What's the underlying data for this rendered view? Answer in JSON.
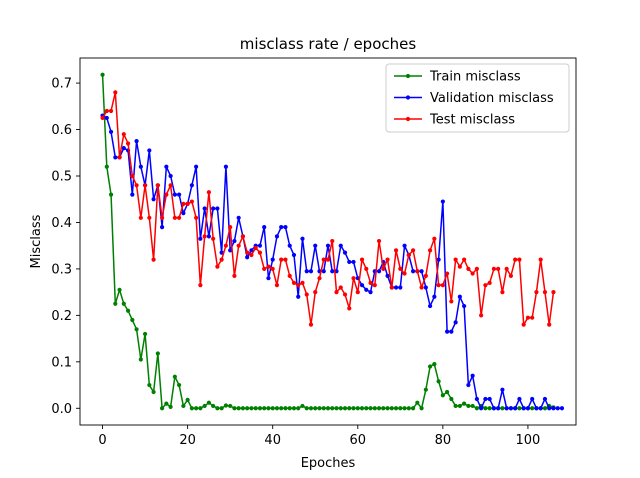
{
  "chart_data": {
    "type": "line",
    "title": "misclass rate / epoches",
    "xlabel": "Epoches",
    "ylabel": "Misclass",
    "xlim": [
      -5.3,
      111.3
    ],
    "ylim": [
      -0.036,
      0.754
    ],
    "xticks": [
      0,
      20,
      40,
      60,
      80,
      100
    ],
    "yticks": [
      0.0,
      0.1,
      0.2,
      0.3,
      0.4,
      0.5,
      0.6,
      0.7
    ],
    "ytick_labels": [
      "0.0",
      "0.1",
      "0.2",
      "0.3",
      "0.4",
      "0.5",
      "0.6",
      "0.7"
    ],
    "grid": false,
    "legend": "top-right",
    "series": [
      {
        "name": "Train misclass",
        "color": "#008000",
        "values": [
          0.718,
          0.52,
          0.46,
          0.225,
          0.255,
          0.225,
          0.21,
          0.19,
          0.17,
          0.105,
          0.16,
          0.05,
          0.035,
          0.118,
          0.0,
          0.01,
          0.003,
          0.068,
          0.05,
          0.005,
          0.018,
          0.0,
          0.0,
          0.0,
          0.005,
          0.012,
          0.005,
          0.0,
          0.0,
          0.006,
          0.005,
          0.0,
          0.0,
          0.0,
          0.0,
          0.0,
          0.0,
          0.0,
          0.0,
          0.0,
          0.0,
          0.0,
          0.0,
          0.0,
          0.0,
          0.0,
          0.0,
          0.005,
          0.0,
          0.0,
          0.0,
          0.0,
          0.0,
          0.0,
          0.0,
          0.0,
          0.0,
          0.0,
          0.0,
          0.0,
          0.0,
          0.0,
          0.0,
          0.0,
          0.0,
          0.0,
          0.0,
          0.0,
          0.0,
          0.0,
          0.0,
          0.0,
          0.0,
          0.0,
          0.012,
          0.0,
          0.04,
          0.09,
          0.095,
          0.058,
          0.028,
          0.035,
          0.02,
          0.005,
          0.005,
          0.01,
          0.005,
          0.005,
          0.0,
          0.005,
          0.0,
          0.0,
          0.0,
          0.0,
          0.0,
          0.0,
          0.0,
          0.0,
          0.0,
          0.0,
          0.0,
          0.0,
          0.0,
          0.0,
          0.0,
          0.005,
          0.002
        ]
      },
      {
        "name": "Validation misclass",
        "color": "#0000ff",
        "values": [
          0.63,
          0.625,
          0.595,
          0.54,
          0.54,
          0.56,
          0.555,
          0.46,
          0.575,
          0.52,
          0.48,
          0.555,
          0.45,
          0.48,
          0.39,
          0.52,
          0.5,
          0.46,
          0.46,
          0.42,
          0.44,
          0.48,
          0.52,
          0.365,
          0.43,
          0.37,
          0.43,
          0.43,
          0.335,
          0.52,
          0.34,
          0.36,
          0.41,
          0.37,
          0.325,
          0.34,
          0.35,
          0.35,
          0.39,
          0.28,
          0.32,
          0.37,
          0.39,
          0.39,
          0.35,
          0.33,
          0.24,
          0.365,
          0.295,
          0.295,
          0.35,
          0.295,
          0.295,
          0.35,
          0.295,
          0.295,
          0.35,
          0.335,
          0.315,
          0.315,
          0.28,
          0.265,
          0.255,
          0.25,
          0.295,
          0.295,
          0.315,
          0.285,
          0.26,
          0.26,
          0.26,
          0.35,
          0.33,
          0.295,
          0.295,
          0.295,
          0.26,
          0.22,
          0.24,
          0.32,
          0.445,
          0.165,
          0.165,
          0.185,
          0.24,
          0.22,
          0.05,
          0.07,
          0.02,
          0.0,
          0.02,
          0.02,
          0.0,
          0.0,
          0.04,
          0.0,
          0.0,
          0.0,
          0.02,
          0.0,
          0.0,
          0.02,
          0.0,
          0.0,
          0.02,
          0.0,
          0.0,
          0.0,
          0.0
        ]
      },
      {
        "name": "Test misclass",
        "color": "#ff0000",
        "values": [
          0.625,
          0.64,
          0.64,
          0.68,
          0.54,
          0.59,
          0.57,
          0.5,
          0.48,
          0.41,
          0.48,
          0.41,
          0.32,
          0.48,
          0.41,
          0.46,
          0.48,
          0.41,
          0.41,
          0.44,
          0.44,
          0.445,
          0.41,
          0.265,
          0.37,
          0.465,
          0.365,
          0.305,
          0.32,
          0.35,
          0.39,
          0.285,
          0.35,
          0.37,
          0.335,
          0.33,
          0.345,
          0.335,
          0.3,
          0.305,
          0.3,
          0.265,
          0.32,
          0.32,
          0.285,
          0.27,
          0.265,
          0.27,
          0.245,
          0.18,
          0.25,
          0.28,
          0.32,
          0.32,
          0.36,
          0.25,
          0.26,
          0.245,
          0.215,
          0.28,
          0.25,
          0.32,
          0.3,
          0.27,
          0.265,
          0.36,
          0.3,
          0.32,
          0.26,
          0.34,
          0.3,
          0.29,
          0.33,
          0.34,
          0.295,
          0.26,
          0.285,
          0.34,
          0.365,
          0.265,
          0.265,
          0.29,
          0.23,
          0.32,
          0.305,
          0.32,
          0.3,
          0.29,
          0.3,
          0.2,
          0.265,
          0.27,
          0.3,
          0.3,
          0.25,
          0.3,
          0.285,
          0.32,
          0.32,
          0.18,
          0.195,
          0.195,
          0.25,
          0.32,
          0.25,
          0.18,
          0.25
        ]
      }
    ]
  }
}
